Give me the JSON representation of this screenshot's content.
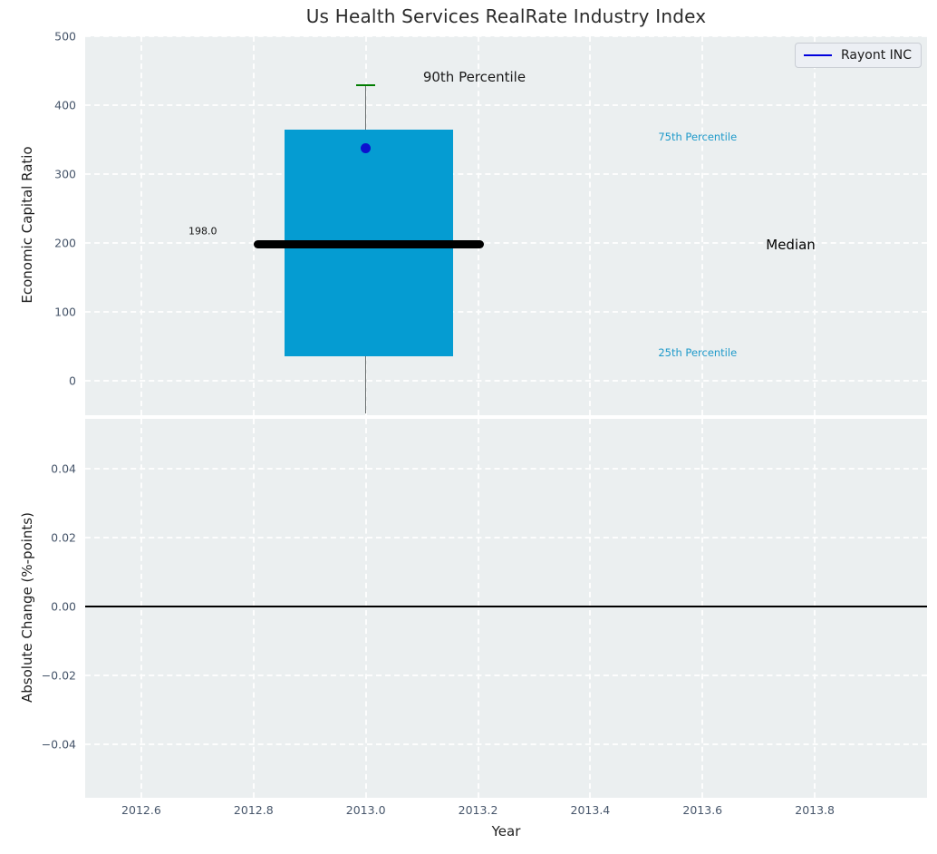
{
  "figure": {
    "title": "Us Health Services RealRate Industry Index",
    "xlabel": "Year",
    "panel_background": "#ebeff0",
    "grid_color": "#ffffff",
    "tick_color": "#47566b"
  },
  "legend": {
    "label": "Rayont INC",
    "line_color": "#0000dd"
  },
  "chart_data": [
    {
      "type": "box",
      "panel": "top",
      "title": "Us Health Services RealRate Industry Index",
      "ylabel": "Economic Capital Ratio",
      "ylim": [
        -50,
        500
      ],
      "xlim": [
        2012.5,
        2014.0
      ],
      "grid": true,
      "yticks": [
        {
          "v": 0,
          "label": "0"
        },
        {
          "v": 100,
          "label": "100"
        },
        {
          "v": 200,
          "label": "200"
        },
        {
          "v": 300,
          "label": "300"
        },
        {
          "v": 400,
          "label": "400"
        },
        {
          "v": 500,
          "label": "500"
        }
      ],
      "percentiles": {
        "p25": 35,
        "median": 198.0,
        "p75": 364,
        "p90": 429,
        "range_low": -47
      },
      "box": {
        "x_center": 2013.0,
        "x_left": 2012.855,
        "x_right": 2013.155,
        "fill": "#059cd2"
      },
      "median_line": {
        "x_left": 2012.8,
        "x_right": 2013.21,
        "value": 198.0,
        "color": "#000000"
      },
      "cap90": {
        "x_left": 2012.983,
        "x_right": 2013.017,
        "value": 429,
        "color": "#007d00"
      },
      "series": [
        {
          "name": "Rayont INC",
          "points": [
            {
              "x": 2013.0,
              "y": 338
            }
          ],
          "color": "#0c10cf",
          "marker": "circle"
        }
      ],
      "annotations": [
        {
          "id": "p90-label",
          "text": "90th Percentile",
          "x": 2013.102,
          "y": 441,
          "color": "#1a1a1a",
          "size": 15
        },
        {
          "id": "p75-label",
          "text": "75th Percentile",
          "x": 2013.521,
          "y": 354,
          "color": "#1f9aca",
          "size": 11.5
        },
        {
          "id": "median-label",
          "text": "Median",
          "x": 2013.713,
          "y": 197,
          "color": "#000000",
          "size": 15
        },
        {
          "id": "p25-label",
          "text": "25th Percentile",
          "x": 2013.521,
          "y": 41,
          "color": "#1f9aca",
          "size": 11.5
        },
        {
          "id": "median-value",
          "text": "198.0",
          "x": 2012.684,
          "y": 217,
          "color": "#141414",
          "size": 11
        }
      ],
      "legend": {
        "label": "Rayont INC",
        "line_color": "#0000dd",
        "position": "upper right"
      }
    },
    {
      "type": "line",
      "panel": "bottom",
      "ylabel": "Absolute Change (%-points)",
      "xlabel": "Year",
      "ylim": [
        -0.0555,
        0.0545
      ],
      "xlim": [
        2012.5,
        2014.0
      ],
      "grid": true,
      "yticks": [
        {
          "v": 0.04,
          "label": "0.04"
        },
        {
          "v": 0.02,
          "label": "0.02"
        },
        {
          "v": 0.0,
          "label": "0.00"
        },
        {
          "v": -0.02,
          "label": "−0.02"
        },
        {
          "v": -0.04,
          "label": "−0.04"
        }
      ],
      "xticks": [
        {
          "v": 2012.6,
          "label": "2012.6"
        },
        {
          "v": 2012.8,
          "label": "2012.8"
        },
        {
          "v": 2013.0,
          "label": "2013.0"
        },
        {
          "v": 2013.2,
          "label": "2013.2"
        },
        {
          "v": 2013.4,
          "label": "2013.4"
        },
        {
          "v": 2013.6,
          "label": "2013.6"
        },
        {
          "v": 2013.8,
          "label": "2013.8"
        }
      ],
      "zero_line": {
        "value": 0.0,
        "color": "#000000"
      },
      "series": []
    }
  ]
}
